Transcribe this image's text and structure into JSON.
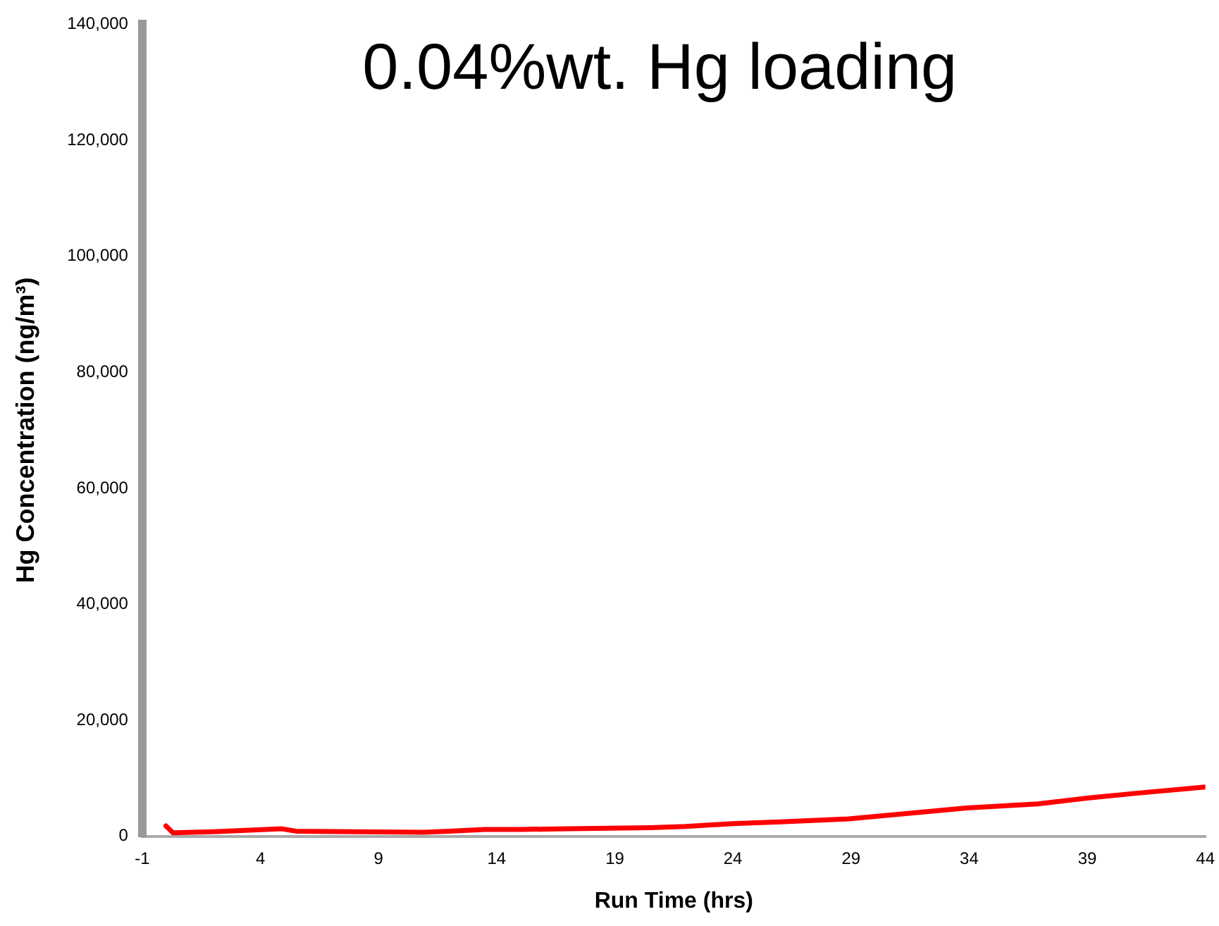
{
  "chart_data": {
    "type": "line",
    "title": "0.04%wt. Hg loading",
    "xlabel": "Run Time (hrs)",
    "ylabel": "Hg Concentration (ng/m³)",
    "xlim": [
      -1,
      44
    ],
    "xticks": [
      -1,
      4,
      9,
      14,
      19,
      24,
      29,
      34,
      39,
      44
    ],
    "ylim": [
      0,
      140000
    ],
    "yticks": [
      0,
      {
        "value": 20000,
        "label": "20,000"
      },
      {
        "value": 40000,
        "label": "40,000"
      },
      {
        "value": 60000,
        "label": "60,000"
      },
      {
        "value": 80000,
        "label": "80,000"
      },
      {
        "value": 100000,
        "label": "100,000"
      },
      {
        "value": 120000,
        "label": "120,000"
      },
      {
        "value": 140000,
        "label": "140,000"
      }
    ],
    "grid": false,
    "legend": false,
    "marker": "none",
    "line_style": "solid",
    "series": [
      {
        "color": "#ff0000",
        "x": [
          0,
          0.3,
          2,
          4.9,
          5.5,
          8,
          10.9,
          12,
          13.5,
          15,
          17,
          20.5,
          22,
          24,
          26,
          28.9,
          31,
          33.9,
          36.9,
          39,
          41,
          44
        ],
        "values": [
          1800,
          600,
          800,
          1300,
          900,
          800,
          700,
          900,
          1200,
          1200,
          1300,
          1500,
          1700,
          2200,
          2500,
          3000,
          3800,
          4900,
          5600,
          6600,
          7400,
          8500
        ]
      }
    ]
  }
}
